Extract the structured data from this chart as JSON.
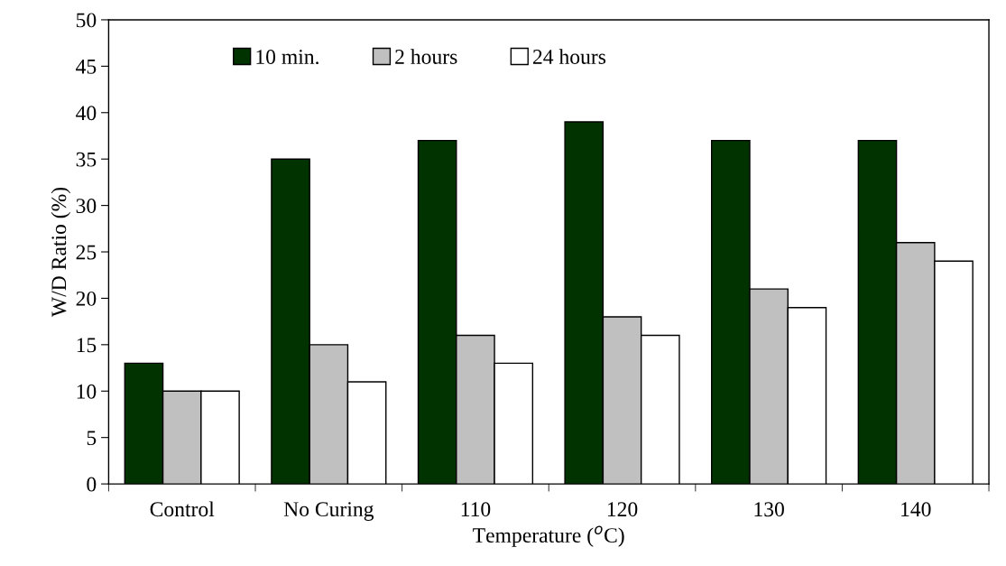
{
  "chart_data": {
    "type": "bar",
    "xlabel": "Temperature ($^{o}$C)",
    "ylabel": "W/D Ratio (%)",
    "categories": [
      "Control",
      "No Curing",
      "110",
      "120",
      "130",
      "140"
    ],
    "series": [
      {
        "name": "10 min.",
        "color": "#003300",
        "values": [
          13,
          35,
          37,
          39,
          37,
          37
        ]
      },
      {
        "name": "2 hours",
        "color": "#c0c0c0",
        "values": [
          10,
          15,
          16,
          18,
          21,
          26
        ]
      },
      {
        "name": "24 hours",
        "color": "#ffffff",
        "values": [
          10,
          11,
          13,
          16,
          19,
          24
        ]
      }
    ],
    "ylim": [
      0,
      50
    ],
    "yticks": [
      0,
      5,
      10,
      15,
      20,
      25,
      30,
      35,
      40,
      45,
      50
    ],
    "grid": false,
    "legend": "top left"
  }
}
